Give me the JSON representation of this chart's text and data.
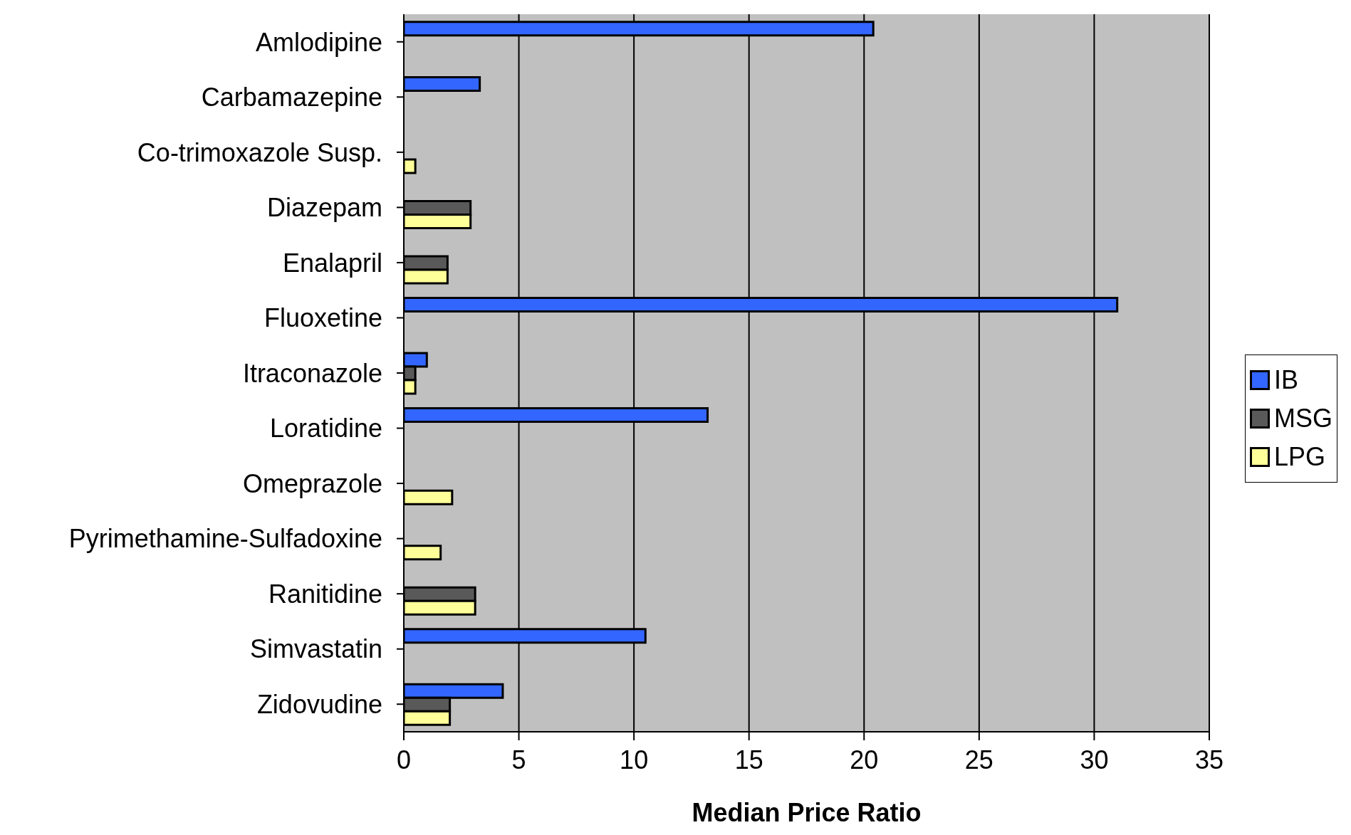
{
  "chart_data": {
    "type": "bar",
    "orientation": "horizontal",
    "xlabel": "Median Price Ratio",
    "categories": [
      "Amlodipine",
      "Carbamazepine",
      "Co-trimoxazole Susp.",
      "Diazepam",
      "Enalapril",
      "Fluoxetine",
      "Itraconazole",
      "Loratidine",
      "Omeprazole",
      "Pyrimethamine-Sulfadoxine",
      "Ranitidine",
      "Simvastatin",
      "Zidovudine"
    ],
    "series": [
      {
        "name": "IB",
        "color": "#3366ff",
        "values": [
          20.4,
          3.3,
          null,
          null,
          null,
          31.0,
          1.0,
          13.2,
          null,
          null,
          null,
          10.5,
          4.3
        ]
      },
      {
        "name": "MSG",
        "color": "#595959",
        "values": [
          null,
          null,
          null,
          2.9,
          1.9,
          null,
          0.5,
          null,
          null,
          null,
          3.1,
          null,
          2.0
        ]
      },
      {
        "name": "LPG",
        "color": "#ffff99",
        "values": [
          null,
          null,
          0.5,
          2.9,
          1.9,
          null,
          0.5,
          null,
          2.1,
          1.6,
          3.1,
          null,
          2.0
        ]
      }
    ],
    "xlim": [
      0,
      35
    ],
    "xticks": [
      0,
      5,
      10,
      15,
      20,
      25,
      30,
      35
    ],
    "grid": "x",
    "legend": "right"
  }
}
